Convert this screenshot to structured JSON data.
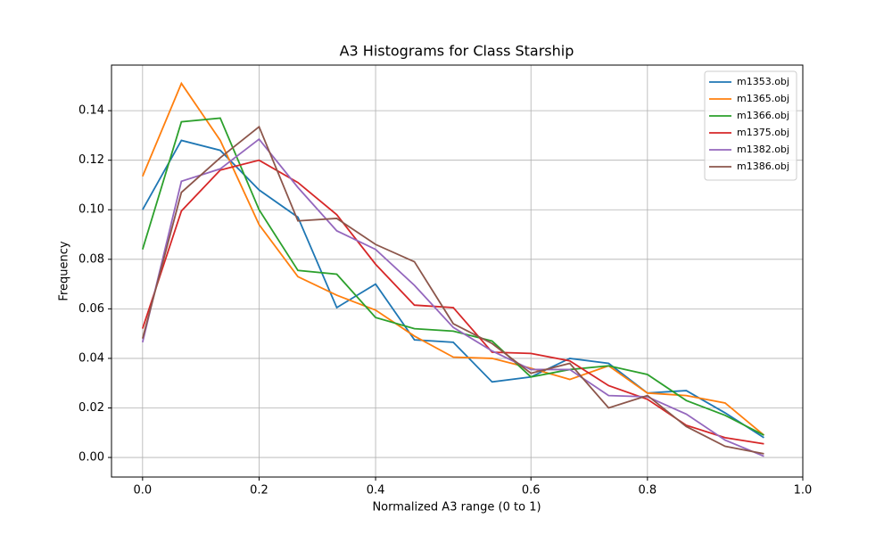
{
  "chart_data": {
    "type": "line",
    "title": "A3 Histograms for Class Starship",
    "xlabel": "Normalized A3 range (0 to 1)",
    "ylabel": "Frequency",
    "x": [
      0,
      1,
      2,
      3,
      4,
      5,
      6,
      7,
      8,
      9,
      10,
      11,
      12,
      13,
      14,
      15,
      16
    ],
    "series": [
      {
        "name": "m1353.obj",
        "color": "#1f77b4",
        "values": [
          0.1,
          0.128,
          0.124,
          0.108,
          0.097,
          0.0605,
          0.07,
          0.0475,
          0.0465,
          0.0305,
          0.0325,
          0.04,
          0.038,
          0.026,
          0.027,
          0.018,
          0.008
        ]
      },
      {
        "name": "m1365.obj",
        "color": "#ff7f0e",
        "values": [
          0.1135,
          0.151,
          0.128,
          0.094,
          0.073,
          0.0655,
          0.0595,
          0.049,
          0.0405,
          0.04,
          0.036,
          0.0315,
          0.037,
          0.026,
          0.025,
          0.022,
          0.009
        ]
      },
      {
        "name": "m1366.obj",
        "color": "#2ca02c",
        "values": [
          0.084,
          0.1355,
          0.137,
          0.1,
          0.0755,
          0.074,
          0.0565,
          0.052,
          0.051,
          0.047,
          0.0325,
          0.0355,
          0.037,
          0.0335,
          0.023,
          0.017,
          0.009
        ]
      },
      {
        "name": "m1375.obj",
        "color": "#d62728",
        "values": [
          0.052,
          0.0995,
          0.116,
          0.12,
          0.111,
          0.098,
          0.078,
          0.0615,
          0.0605,
          0.0425,
          0.042,
          0.039,
          0.029,
          0.0235,
          0.013,
          0.008,
          0.0055
        ]
      },
      {
        "name": "m1382.obj",
        "color": "#9467bd",
        "values": [
          0.0465,
          0.1115,
          0.1165,
          0.1285,
          0.109,
          0.0915,
          0.084,
          0.0695,
          0.0525,
          0.043,
          0.0355,
          0.0355,
          0.025,
          0.0245,
          0.0175,
          0.007,
          0.0005
        ]
      },
      {
        "name": "m1386.obj",
        "color": "#8c564b",
        "values": [
          0.048,
          0.107,
          0.121,
          0.1335,
          0.0955,
          0.0965,
          0.086,
          0.079,
          0.054,
          0.046,
          0.034,
          0.038,
          0.02,
          0.025,
          0.0125,
          0.0045,
          0.0015
        ]
      }
    ],
    "xlim": [
      -0.8,
      17
    ],
    "xticks": [
      {
        "value": 0,
        "label": "0.0"
      },
      {
        "value": 3,
        "label": "0.2"
      },
      {
        "value": 6,
        "label": "0.4"
      },
      {
        "value": 10,
        "label": "0.6"
      },
      {
        "value": 13,
        "label": "0.8"
      },
      {
        "value": 17,
        "label": "1.0"
      }
    ],
    "ylim": [
      -0.0079,
      0.1584
    ],
    "yticks": [
      {
        "value": 0,
        "label": "0.00"
      },
      {
        "value": 0.02,
        "label": "0.02"
      },
      {
        "value": 0.04,
        "label": "0.04"
      },
      {
        "value": 0.06,
        "label": "0.06"
      },
      {
        "value": 0.08,
        "label": "0.08"
      },
      {
        "value": 0.1,
        "label": "0.10"
      },
      {
        "value": 0.12,
        "label": "0.12"
      },
      {
        "value": 0.14,
        "label": "0.14"
      }
    ],
    "grid": true,
    "legend": "upper right"
  }
}
